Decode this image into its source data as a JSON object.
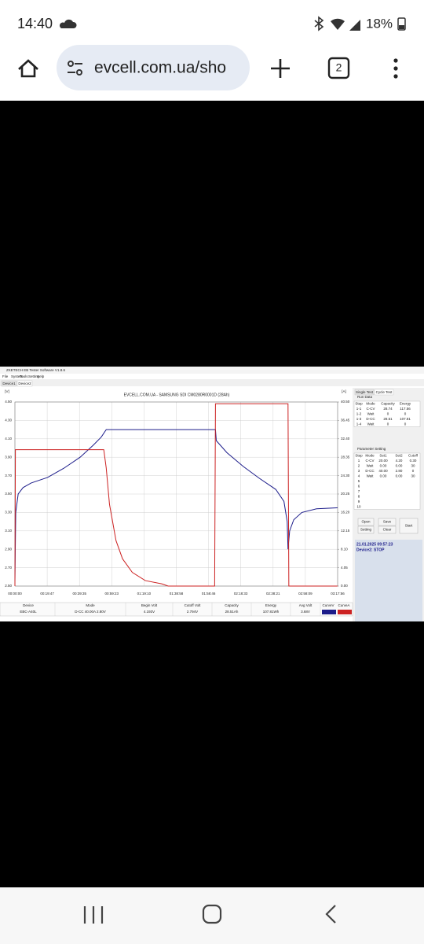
{
  "status_bar": {
    "time": "14:40",
    "battery": "18%"
  },
  "browser": {
    "url": "evcell.com.ua/sho",
    "tab_count": "2"
  },
  "app": {
    "title": "ZKETECH EB Tester Software V1.8.6",
    "menu": [
      "File",
      "System",
      "Tools",
      "Setting",
      "Help"
    ],
    "device_tabs": [
      "Device1",
      "Device2"
    ],
    "chart_data": {
      "type": "line",
      "title": "EVCELL.COM.UA - SAMSUNG SDI CM0280R0001D (28Ah)",
      "y_label": "[V]",
      "y2_label": "[A]",
      "xlim": [
        0,
        197.93
      ],
      "xticks": [
        {
          "value": 0,
          "label": "00:00:00"
        },
        {
          "value": 19.79,
          "label": "00:19:47"
        },
        {
          "value": 39.59,
          "label": "00:39:35"
        },
        {
          "value": 59.38,
          "label": "00:59:23"
        },
        {
          "value": 79.17,
          "label": "01:19:10"
        },
        {
          "value": 98.97,
          "label": "01:38:58"
        },
        {
          "value": 118.76,
          "label": "01:58:46"
        },
        {
          "value": 138.55,
          "label": "02:18:33"
        },
        {
          "value": 158.35,
          "label": "02:38:21"
        },
        {
          "value": 178.14,
          "label": "02:58:09"
        },
        {
          "value": 197.93,
          "label": "03:17:56"
        }
      ],
      "ylim": [
        2.5,
        4.5
      ],
      "yticks": [
        {
          "value": 2.5,
          "label": "2.50"
        },
        {
          "value": 2.7,
          "label": "2.70"
        },
        {
          "value": 2.9,
          "label": "2.90"
        },
        {
          "value": 3.1,
          "label": "3.10"
        },
        {
          "value": 3.3,
          "label": "3.30"
        },
        {
          "value": 3.5,
          "label": "3.50"
        },
        {
          "value": 3.7,
          "label": "3.70"
        },
        {
          "value": 3.9,
          "label": "3.90"
        },
        {
          "value": 4.1,
          "label": "4.10"
        },
        {
          "value": 4.3,
          "label": "4.30"
        },
        {
          "value": 4.5,
          "label": "4.50"
        }
      ],
      "y2lim": [
        0,
        40.5
      ],
      "y2ticks": [
        {
          "value": 0,
          "label": "0.00"
        },
        4.05,
        {
          "value": 8.1,
          "label": "8.10"
        },
        12.15,
        {
          "value": 16.2,
          "label": "16.20"
        },
        20.25,
        {
          "value": 24.3,
          "label": "24.30"
        },
        28.35,
        {
          "value": 32.4,
          "label": "32.40"
        },
        36.45,
        {
          "value": 40.5,
          "label": "40.50"
        }
      ],
      "grid": true,
      "series": [
        {
          "name": "CurveV",
          "color": "#1c1c8a",
          "x": [
            0,
            0.5,
            2,
            5,
            10,
            20,
            30,
            40,
            48,
            53,
            56,
            123,
            123.5,
            130,
            140,
            150,
            160,
            165,
            167,
            167.5,
            168.5,
            171,
            176,
            185,
            197.9
          ],
          "values": [
            2.55,
            3.3,
            3.5,
            3.57,
            3.62,
            3.68,
            3.78,
            3.9,
            4.03,
            4.12,
            4.2,
            4.2,
            4.08,
            3.95,
            3.8,
            3.67,
            3.55,
            3.42,
            3.2,
            2.9,
            3.1,
            3.22,
            3.3,
            3.34,
            3.35
          ]
        },
        {
          "name": "CurveA",
          "color": "#cc2222",
          "axis": "y2",
          "x": [
            0,
            0.3,
            54.5,
            56,
            58,
            62,
            66,
            72,
            80,
            90,
            94,
            122.5,
            123,
            167.5,
            168,
            197.9
          ],
          "values": [
            0,
            30,
            30,
            26,
            18,
            10,
            6,
            3,
            1.2,
            0.5,
            0,
            0,
            40.1,
            40.1,
            0,
            0
          ]
        }
      ]
    },
    "summary": {
      "headers": [
        "Device",
        "Mode",
        "Begin Volt",
        "Cutoff Volt",
        "Capacity",
        "Energy",
        "Avg Volt"
      ],
      "values": [
        "EBC-A40L",
        "D-CC 40.00A 2.80V",
        "4.193V",
        "2.794V",
        "28.51Ah",
        "107.81Wh",
        "3.68V"
      ]
    },
    "side_tabs": [
      "Single Test",
      "Cycle Test"
    ],
    "run_data": {
      "title": "Run Data",
      "headers": [
        "Step",
        "Mode",
        "Capacity",
        "Energy"
      ],
      "rows": [
        [
          "1-1",
          "C-CV",
          "28.74",
          "117.56"
        ],
        [
          "1-2",
          "Wait",
          "0",
          "0"
        ],
        [
          "1-3",
          "D-CC",
          "28.51",
          "107.81"
        ],
        [
          "1-4",
          "Wait",
          "0",
          "0"
        ]
      ]
    },
    "parameter_setting": {
      "title": "Parameter Setting",
      "headers": [
        "Step",
        "Mode",
        "Set1",
        "Set2",
        "Cutoff"
      ],
      "rows": [
        [
          "1",
          "C-CV",
          "20.00",
          "4.20",
          "0.30"
        ],
        [
          "2",
          "Wait",
          "0.00",
          "0.00",
          "30"
        ],
        [
          "3",
          "D-CC",
          "40.00",
          "2.80",
          "0"
        ],
        [
          "4",
          "Wait",
          "0.00",
          "0.00",
          "30"
        ],
        [
          "5"
        ],
        [
          "6"
        ],
        [
          "7"
        ],
        [
          "8"
        ],
        [
          "9"
        ],
        [
          "10"
        ]
      ]
    },
    "buttons": [
      "Open",
      "Save",
      "Start",
      "Setting",
      "Clear"
    ],
    "status": {
      "timestamp": "21.01.2025 09:57:23",
      "device": "Device2: STOP"
    }
  }
}
